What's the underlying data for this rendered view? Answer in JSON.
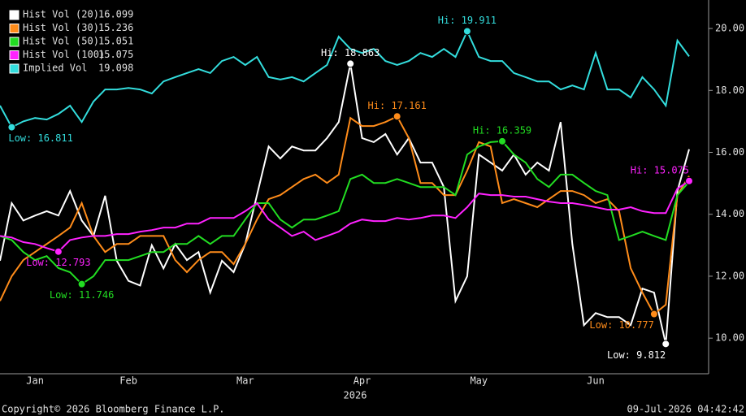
{
  "chart_data": {
    "type": "line",
    "x_label": "2026",
    "categories": [
      null,
      null,
      null,
      "Jan",
      null,
      null,
      null,
      null,
      null,
      null,
      null,
      "Feb",
      null,
      null,
      null,
      null,
      null,
      null,
      null,
      null,
      null,
      "Mar",
      null,
      null,
      null,
      null,
      null,
      null,
      null,
      null,
      null,
      "Apr",
      null,
      null,
      null,
      null,
      null,
      null,
      null,
      null,
      null,
      "May",
      null,
      null,
      null,
      null,
      null,
      null,
      null,
      null,
      null,
      "Jun",
      null,
      null,
      null,
      null,
      null,
      null,
      null,
      null
    ],
    "ylim": [
      8.85,
      20.92
    ],
    "yticks": [
      {
        "value": 10,
        "label": "10.00"
      },
      {
        "value": 12,
        "label": "12.00"
      },
      {
        "value": 14,
        "label": "14.00"
      },
      {
        "value": 16,
        "label": "16.00"
      },
      {
        "value": 18,
        "label": "18.00"
      },
      {
        "value": 20,
        "label": "20.00"
      }
    ],
    "series": [
      {
        "name": "Hist Vol (20)",
        "color": "#ffffff",
        "hi_label": "Hi: 18.863",
        "low_label": "Low: 9.812",
        "values": [
          12.5,
          14.36,
          13.8,
          13.96,
          14.1,
          13.96,
          14.75,
          13.8,
          13.3,
          14.6,
          12.5,
          11.85,
          11.7,
          13.0,
          12.25,
          13.04,
          12.52,
          12.78,
          11.47,
          12.5,
          12.13,
          13.04,
          14.62,
          16.19,
          15.8,
          16.19,
          16.06,
          16.06,
          16.46,
          16.98,
          18.863,
          16.46,
          16.33,
          16.59,
          15.93,
          16.46,
          15.67,
          15.67,
          14.88,
          11.2,
          12.0,
          15.93,
          15.67,
          15.41,
          15.93,
          15.28,
          15.67,
          15.41,
          16.98,
          13.04,
          10.42,
          10.81,
          10.68,
          10.68,
          10.42,
          11.6,
          11.47,
          9.812,
          14.75,
          16.099
        ]
      },
      {
        "name": "Hist Vol (30)",
        "color": "#ff8c1a",
        "hi_label": "Hi: 17.161",
        "low_label": "Low: 10.777",
        "values": [
          11.2,
          12.0,
          12.52,
          12.78,
          13.04,
          13.3,
          13.57,
          14.36,
          13.3,
          12.78,
          13.04,
          13.04,
          13.3,
          13.3,
          13.3,
          12.52,
          12.13,
          12.52,
          12.78,
          12.78,
          12.39,
          13.04,
          13.83,
          14.49,
          14.62,
          14.88,
          15.14,
          15.28,
          15.01,
          15.28,
          17.11,
          16.85,
          16.85,
          16.98,
          17.161,
          16.46,
          15.01,
          15.01,
          14.62,
          14.62,
          15.41,
          16.33,
          16.19,
          14.36,
          14.49,
          14.36,
          14.23,
          14.49,
          14.75,
          14.75,
          14.62,
          14.36,
          14.49,
          14.1,
          12.26,
          11.47,
          10.777,
          11.08,
          14.62,
          15.236
        ]
      },
      {
        "name": "Hist Vol (50)",
        "color": "#22dd22",
        "hi_label": "Hi: 16.359",
        "low_label": "Low: 11.746",
        "values": [
          13.3,
          13.17,
          12.78,
          12.52,
          12.65,
          12.26,
          12.13,
          11.746,
          12.0,
          12.52,
          12.52,
          12.52,
          12.65,
          12.78,
          12.78,
          13.04,
          13.04,
          13.3,
          13.04,
          13.3,
          13.3,
          13.83,
          14.36,
          14.36,
          13.83,
          13.57,
          13.83,
          13.83,
          13.96,
          14.1,
          15.14,
          15.28,
          15.01,
          15.01,
          15.14,
          15.01,
          14.88,
          14.88,
          14.88,
          14.62,
          15.93,
          16.19,
          16.33,
          16.359,
          15.93,
          15.67,
          15.14,
          14.88,
          15.28,
          15.28,
          15.01,
          14.75,
          14.62,
          13.17,
          13.3,
          13.44,
          13.3,
          13.17,
          14.62,
          15.051
        ]
      },
      {
        "name": "Hist Vol (100)",
        "color": "#ff22ff",
        "hi_label": "Hi: 15.075",
        "low_label": "Low: 12.793",
        "values": [
          13.3,
          13.25,
          13.1,
          13.04,
          12.91,
          12.793,
          13.17,
          13.25,
          13.3,
          13.3,
          13.36,
          13.36,
          13.44,
          13.49,
          13.57,
          13.57,
          13.7,
          13.7,
          13.88,
          13.88,
          13.88,
          14.1,
          14.36,
          13.83,
          13.57,
          13.3,
          13.44,
          13.17,
          13.3,
          13.44,
          13.7,
          13.83,
          13.78,
          13.78,
          13.88,
          13.83,
          13.88,
          13.96,
          13.96,
          13.88,
          14.23,
          14.67,
          14.62,
          14.62,
          14.57,
          14.57,
          14.49,
          14.41,
          14.36,
          14.36,
          14.3,
          14.23,
          14.15,
          14.15,
          14.23,
          14.1,
          14.04,
          14.04,
          14.83,
          15.075
        ]
      },
      {
        "name": "Implied Vol",
        "color": "#33dddd",
        "hi_label": "Hi: 19.911",
        "low_label": "Low: 16.811",
        "values": [
          17.51,
          16.811,
          17.0,
          17.11,
          17.06,
          17.24,
          17.51,
          16.98,
          17.64,
          18.03,
          18.03,
          18.08,
          18.03,
          17.9,
          18.29,
          18.43,
          18.56,
          18.69,
          18.56,
          18.95,
          19.08,
          18.82,
          19.08,
          18.43,
          18.35,
          18.43,
          18.29,
          18.56,
          18.82,
          19.74,
          19.34,
          19.21,
          19.34,
          18.95,
          18.82,
          18.95,
          19.21,
          19.08,
          19.34,
          19.08,
          19.911,
          19.08,
          18.95,
          18.95,
          18.56,
          18.43,
          18.29,
          18.29,
          18.03,
          18.16,
          18.03,
          19.21,
          18.03,
          18.03,
          17.77,
          18.43,
          18.03,
          17.51,
          19.61,
          19.098
        ]
      }
    ],
    "footer_left": "Copyright© 2026 Bloomberg Finance L.P.",
    "footer_right": "09-Jul-2026 04:42:42"
  }
}
